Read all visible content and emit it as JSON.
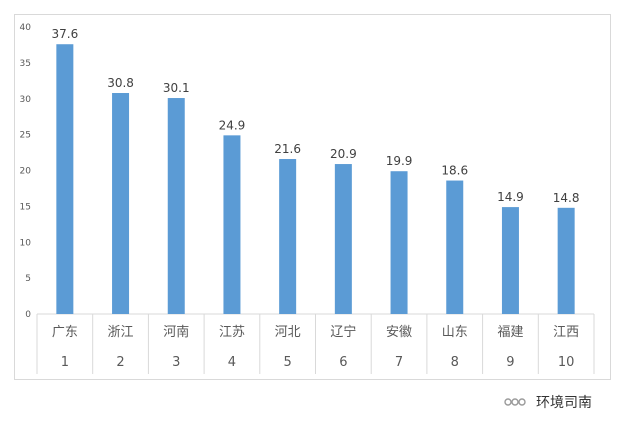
{
  "chart_data": {
    "type": "bar",
    "categories": [
      "广东",
      "浙江",
      "河南",
      "江苏",
      "河北",
      "辽宁",
      "安徽",
      "山东",
      "福建",
      "江西"
    ],
    "ranks": [
      "1",
      "2",
      "3",
      "4",
      "5",
      "6",
      "7",
      "8",
      "9",
      "10"
    ],
    "values": [
      37.6,
      30.8,
      30.1,
      24.9,
      21.6,
      20.9,
      19.9,
      18.6,
      14.9,
      14.8
    ],
    "value_labels": [
      "37.6",
      "30.8",
      "30.1",
      "24.9",
      "21.6",
      "20.9",
      "19.9",
      "18.6",
      "14.9",
      "14.8"
    ],
    "yticks": [
      "0",
      "5",
      "10",
      "15",
      "20",
      "25",
      "30",
      "35",
      "40"
    ],
    "ylim": [
      0,
      40
    ],
    "grid": false,
    "bar_color": "#5b9bd5",
    "title": "",
    "xlabel": "",
    "ylabel": ""
  },
  "watermark": {
    "icon": "wechat-icon",
    "text": "环境司南"
  }
}
